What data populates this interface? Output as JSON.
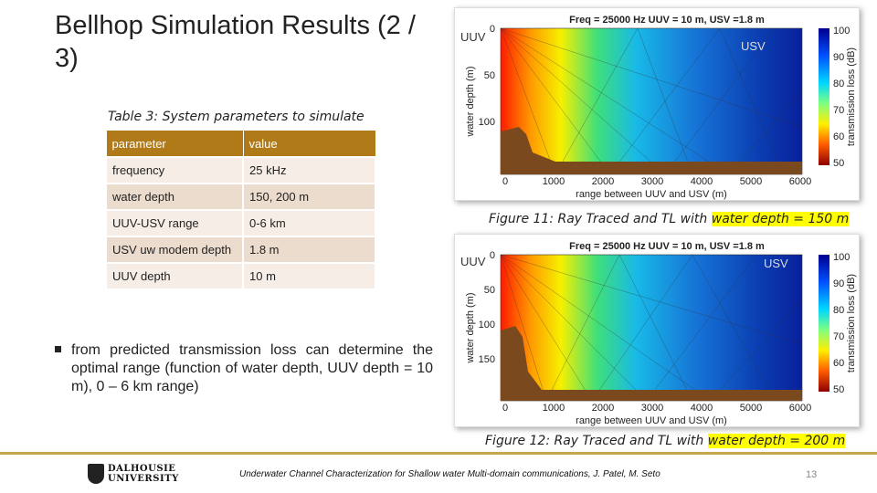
{
  "slide": {
    "title": "Bellhop Simulation Results (2 / 3)",
    "table_caption": "Table 3: System parameters to simulate",
    "table": {
      "headers": [
        "parameter",
        "value"
      ],
      "rows": [
        [
          "frequency",
          "25 kHz"
        ],
        [
          "water depth",
          "150, 200 m"
        ],
        [
          "UUV-USV range",
          "0-6 km"
        ],
        [
          "USV uw modem depth",
          "1.8 m"
        ],
        [
          "UUV depth",
          "10 m"
        ]
      ]
    },
    "bullet": "from predicted transmission loss can determine the optimal range (function of water depth, UUV depth = 10 m), 0 – 6 km range)"
  },
  "figures": [
    {
      "plot_title": "Freq = 25000 Hz   UUV = 10 m, USV =1.8 m",
      "ylabel": "water depth (m)",
      "xlabel": "range between UUV and USV (m)",
      "cbar_label": "transmission loss (dB)",
      "y_ticks": [
        "0",
        "50",
        "100"
      ],
      "x_ticks": [
        "0",
        "1000",
        "2000",
        "3000",
        "4000",
        "5000",
        "6000"
      ],
      "cbar_ticks": [
        "100",
        "90",
        "80",
        "70",
        "60",
        "50"
      ],
      "uuv_label": "UUV",
      "usv_label": "USV",
      "caption_prefix": "Figure 11: Ray Traced and TL with ",
      "caption_highlight": "water depth = 150 m"
    },
    {
      "plot_title": "Freq = 25000 Hz   UUV = 10 m, USV =1.8 m",
      "ylabel": "water depth (m)",
      "xlabel": "range between UUV and USV (m)",
      "cbar_label": "transmission loss (dB)",
      "y_ticks": [
        "0",
        "50",
        "100",
        "150"
      ],
      "x_ticks": [
        "0",
        "1000",
        "2000",
        "3000",
        "4000",
        "5000",
        "6000"
      ],
      "cbar_ticks": [
        "100",
        "90",
        "80",
        "70",
        "60",
        "50"
      ],
      "uuv_label": "UUV",
      "usv_label": "USV",
      "caption_prefix": "Figure 12: Ray Traced and TL with ",
      "caption_highlight": "water depth = 200 m"
    }
  ],
  "footer": {
    "logo_line1": "DALHOUSIE",
    "logo_line2": "UNIVERSITY",
    "citation": "Underwater Channel Characterization for Shallow water Multi-domain communications, J. Patel, M. Seto",
    "page_number": "13"
  },
  "colors": {
    "accent": "#c8a64a",
    "table_header": "#b07a18",
    "highlight": "#ffff00"
  }
}
